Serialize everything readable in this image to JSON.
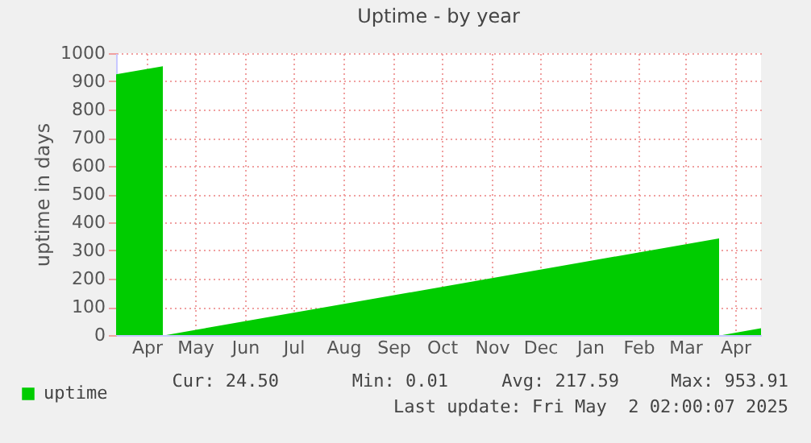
{
  "chart_data": {
    "type": "area",
    "title": "Uptime - by year",
    "ylabel": "uptime in days",
    "x": [
      "2024-03-28",
      "2024-04-26",
      "2024-04-27",
      "2024-04-28",
      "2025-04-06",
      "2025-04-07",
      "2025-04-08",
      "2025-05-02"
    ],
    "series": [
      {
        "name": "uptime",
        "color": "#00cc00",
        "values": [
          925,
          953.91,
          null,
          0.01,
          343,
          null,
          0.01,
          24.5
        ]
      }
    ],
    "xlim": [
      "2024-03-28",
      "2025-05-02"
    ],
    "xticks": [
      {
        "value": "2024-04-16",
        "label": "Apr"
      },
      {
        "value": "2024-05-16",
        "label": "May"
      },
      {
        "value": "2024-06-16",
        "label": "Jun"
      },
      {
        "value": "2024-07-16",
        "label": "Jul"
      },
      {
        "value": "2024-08-16",
        "label": "Aug"
      },
      {
        "value": "2024-09-16",
        "label": "Sep"
      },
      {
        "value": "2024-10-16",
        "label": "Oct"
      },
      {
        "value": "2024-11-16",
        "label": "Nov"
      },
      {
        "value": "2024-12-16",
        "label": "Dec"
      },
      {
        "value": "2025-01-16",
        "label": "Jan"
      },
      {
        "value": "2025-02-15",
        "label": "Feb"
      },
      {
        "value": "2025-03-16",
        "label": "Mar"
      },
      {
        "value": "2025-04-16",
        "label": "Apr"
      }
    ],
    "ylim": [
      0,
      1000
    ],
    "yticks": [
      0,
      100,
      200,
      300,
      400,
      500,
      600,
      700,
      800,
      900,
      1000
    ],
    "grid": true,
    "legend": "bottom left",
    "annotations": [
      "Cur: 24.50",
      "Min: 0.01",
      "Avg: 217.59",
      "Max: 953.91",
      "Last update: Fri May  2 02:00:07 2025"
    ]
  }
}
